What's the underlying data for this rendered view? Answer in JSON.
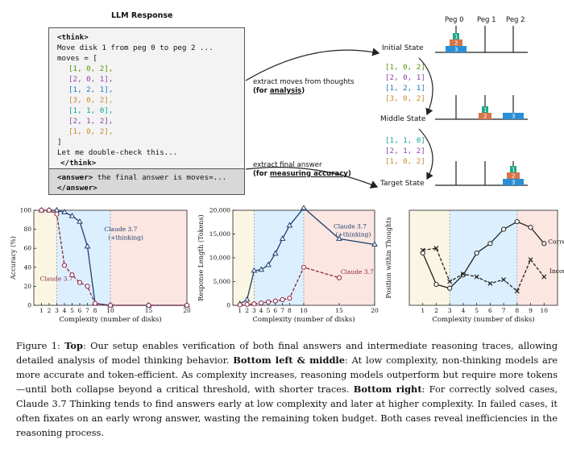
{
  "llm": {
    "title": "LLM Response",
    "think_open": "<think>",
    "line1": "Move disk 1 from peg 0 to peg 2 ...",
    "moves_open": "moves = [",
    "moves": [
      "[1, 0, 2],",
      "[2, 0, 1],",
      "[1, 2, 1],",
      "[3, 0, 2],",
      "[1, 1, 0],",
      "[2, 1, 2],",
      "[1, 0, 2],"
    ],
    "moves_close": "]",
    "recheck": "Let me double-check this...",
    "think_close": "</think>",
    "answer_open": "<answer>",
    "answer_text": " the final answer is moves=...",
    "answer_close": "</answer>"
  },
  "arrows": {
    "extract_moves": "extract moves  from thoughts",
    "for_analysis_pre": "(for ",
    "for_analysis_key": "analysis",
    "for_analysis_post": ")",
    "extract_final": "extract final answer",
    "for_measuring_pre": "(for ",
    "for_measuring_key": "measuring accuracy",
    "for_measuring_post": ")"
  },
  "hanoi": {
    "peg_labels": [
      "Peg 0",
      "Peg 1",
      "Peg 2"
    ],
    "states": [
      "Initial State",
      "Middle State",
      "Target State"
    ],
    "disk_labels": [
      "1",
      "2",
      "3"
    ]
  },
  "moves_list_1": [
    "[1, 0, 2]",
    "[2, 0, 1]",
    "[1, 2, 1]",
    "[3, 0, 2]"
  ],
  "moves_list_2": [
    "[1, 1, 0]",
    "[2, 1, 2]",
    "[1, 0, 2]"
  ],
  "colors": {
    "blue": "#1f7ab8",
    "red": "#b04a62",
    "green": "#4e9a06",
    "purple": "#8e44ad",
    "orange": "#c78a2c",
    "teal": "#13a39a",
    "disk1": "#1fa58a",
    "disk2": "#d6764a",
    "disk3": "#2a8fd6",
    "claude_think": "#1d3f6e",
    "claude_base": "#8e2342",
    "band_yellow": "#fbf6e3",
    "band_blue": "#dcefff",
    "band_red": "#fbe6e1"
  },
  "chart_data": [
    {
      "type": "line",
      "xlabel": "Complexity (number of disks)",
      "ylabel": "Accuracy (%)",
      "xlim": [
        0,
        20
      ],
      "ylim": [
        0,
        100
      ],
      "xticks": [
        1,
        2,
        3,
        4,
        5,
        6,
        7,
        8,
        10,
        15,
        20
      ],
      "yticks": [
        0,
        20,
        40,
        60,
        80,
        100
      ],
      "series": [
        {
          "name": "Claude 3.7 (+thinking)",
          "x": [
            1,
            2,
            3,
            4,
            5,
            6,
            7,
            8,
            10,
            15,
            20
          ],
          "y": [
            100,
            100,
            100,
            98,
            94,
            88,
            62,
            2,
            0,
            0,
            0
          ],
          "marker": "triangle"
        },
        {
          "name": "Claude 3.7",
          "x": [
            1,
            2,
            3,
            4,
            5,
            6,
            7,
            8,
            10,
            15,
            20
          ],
          "y": [
            100,
            100,
            96,
            42,
            32,
            24,
            20,
            2,
            0,
            0,
            0
          ],
          "marker": "circle"
        }
      ],
      "labels": {
        "think1": "Claude 3.7",
        "think2": "(+thinking)",
        "base": "Claude 3.7"
      }
    },
    {
      "type": "line",
      "xlabel": "Complexity (number of disks)",
      "ylabel": "Response Length (Tokens)",
      "xlim": [
        0,
        20
      ],
      "ylim": [
        0,
        20000
      ],
      "xticks": [
        1,
        2,
        3,
        4,
        5,
        6,
        7,
        8,
        10,
        15,
        20
      ],
      "yticks": [
        0,
        5000,
        10000,
        15000,
        20000
      ],
      "ytick_labels": [
        "0",
        "5,000",
        "10,000",
        "15,000",
        "20,000"
      ],
      "series": [
        {
          "name": "Claude 3.7 (+thinking)",
          "x": [
            1,
            2,
            3,
            4,
            5,
            6,
            7,
            8,
            10,
            15,
            20
          ],
          "y": [
            300,
            1200,
            7300,
            7500,
            8500,
            10900,
            14000,
            16800,
            20500,
            14000,
            12800
          ],
          "marker": "triangle"
        },
        {
          "name": "Claude 3.7",
          "x": [
            1,
            2,
            3,
            4,
            5,
            6,
            7,
            8,
            10,
            15,
            20
          ],
          "y": [
            100,
            200,
            300,
            500,
            700,
            900,
            1200,
            1500,
            8000,
            5800,
            null
          ],
          "marker": "circle"
        }
      ],
      "labels": {
        "think1": "Claude 3.7",
        "think2": "(+thinking)",
        "base": "Claude 3.7"
      }
    },
    {
      "type": "line",
      "xlabel": "Complexity (number of disks)",
      "ylabel": "Position within Thoughts",
      "xlim": [
        0,
        11
      ],
      "ylim": [
        0,
        1
      ],
      "xticks": [
        1,
        2,
        3,
        4,
        5,
        6,
        7,
        8,
        9,
        10
      ],
      "series": [
        {
          "name": "Correct Solutions",
          "x": [
            1,
            2,
            3,
            4,
            5,
            6,
            7,
            8,
            9,
            10
          ],
          "y": [
            0.55,
            0.22,
            0.18,
            0.32,
            0.55,
            0.65,
            0.8,
            0.88,
            0.82,
            0.65
          ],
          "marker": "circle"
        },
        {
          "name": "Incorrect Solutions",
          "x": [
            1,
            2,
            3,
            4,
            5,
            6,
            7,
            8,
            9,
            10
          ],
          "y": [
            0.58,
            0.6,
            0.25,
            0.33,
            0.3,
            0.23,
            0.27,
            0.15,
            0.48,
            0.3
          ],
          "marker": "x"
        }
      ],
      "labels": {
        "correct": "Correct Solutions",
        "incorrect": "Incorrect Solutions"
      }
    }
  ],
  "caption": {
    "fig": "Figure 1: ",
    "top_label": "Top",
    "top_text": ": Our setup enables verification of both final answers and intermediate reasoning traces, allowing detailed analysis of model thinking behavior. ",
    "bl_label": "Bottom left & middle",
    "bl_text": ": At low complexity, non-thinking models are more accurate and token-efficient. As complexity increases, reasoning models outperform but require more tokens—until both collapse beyond a critical threshold, with shorter traces. ",
    "br_label": "Bottom right",
    "br_text": ": For correctly solved cases, Claude 3.7 Thinking tends to find answers early at low complexity and later at higher complexity. In failed cases, it often fixates on an early wrong answer, wasting the remaining token budget. Both cases reveal inefficiencies in the reasoning process."
  }
}
